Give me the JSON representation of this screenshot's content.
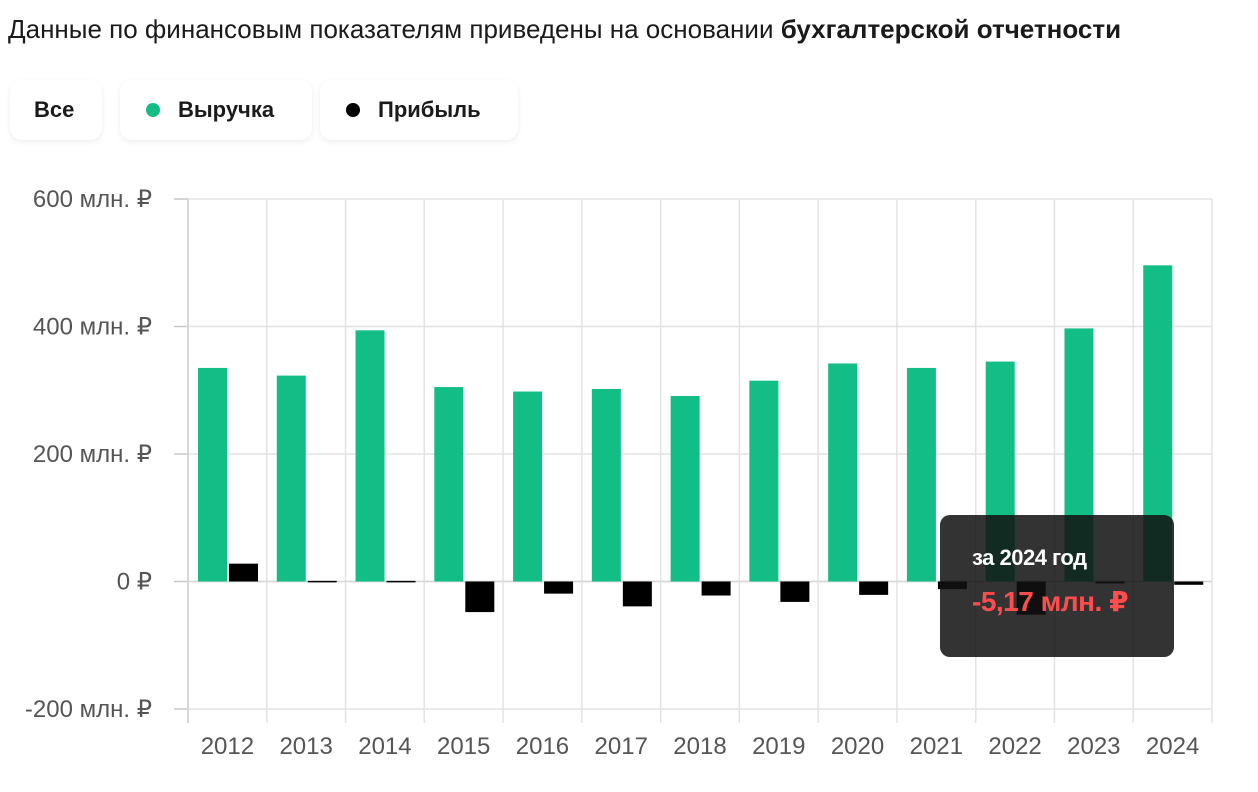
{
  "header": {
    "text_regular": "Данные по финансовым показателям приведены на основании ",
    "text_bold": "бухгалтерской отчетности"
  },
  "filters": [
    {
      "label": "Все",
      "dot": null
    },
    {
      "label": "Выручка",
      "dot": "#13bd86"
    },
    {
      "label": "Прибыль",
      "dot": "#000000"
    }
  ],
  "chart_data": {
    "type": "bar",
    "categories": [
      "2012",
      "2013",
      "2014",
      "2015",
      "2016",
      "2017",
      "2018",
      "2019",
      "2020",
      "2021",
      "2022",
      "2023",
      "2024"
    ],
    "series": [
      {
        "name": "Выручка",
        "color": "#13bd86",
        "values": [
          335,
          323,
          394,
          305,
          298,
          302,
          291,
          315,
          342,
          335,
          345,
          397,
          496
        ]
      },
      {
        "name": "Прибыль",
        "color": "#000000",
        "values": [
          28,
          1,
          1,
          -48,
          -19,
          -39,
          -22,
          -32,
          -21,
          -12,
          -52,
          -3,
          -5.17
        ]
      }
    ],
    "y_ticks": [
      600,
      400,
      200,
      0,
      -200
    ],
    "y_tick_labels": [
      "600 млн. ₽",
      "400 млн. ₽",
      "200 млн. ₽",
      "0 ₽",
      "-200 млн. ₽"
    ],
    "ylim": [
      -200,
      600
    ],
    "grid": true
  },
  "tooltip": {
    "title": "за 2024 год",
    "value": "-5,17 млн. ₽",
    "value_color": "#ff4d4d"
  }
}
